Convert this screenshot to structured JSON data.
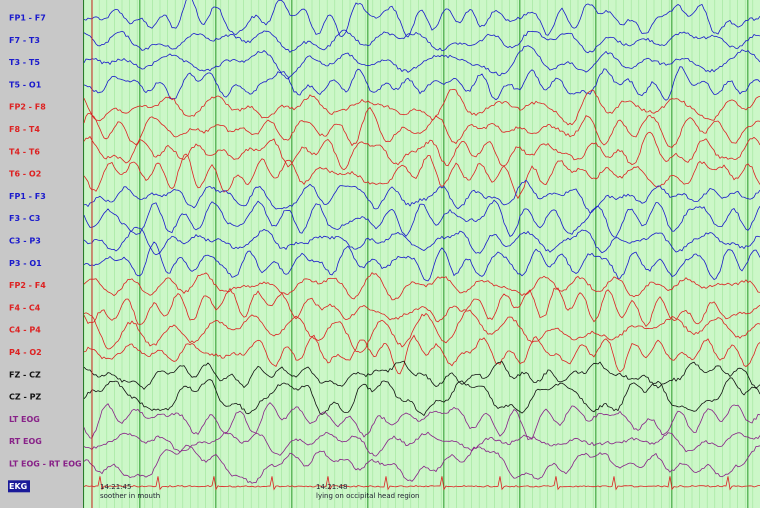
{
  "channels": [
    {
      "label": "FP1 - F7",
      "color": "#1a1acc"
    },
    {
      "label": "F7 - T3",
      "color": "#1a1acc"
    },
    {
      "label": "T3 - T5",
      "color": "#1a1acc"
    },
    {
      "label": "T5 - O1",
      "color": "#1a1acc"
    },
    {
      "label": "FP2 - F8",
      "color": "#dd2222"
    },
    {
      "label": "F8 - T4",
      "color": "#dd2222"
    },
    {
      "label": "T4 - T6",
      "color": "#dd2222"
    },
    {
      "label": "T6 - O2",
      "color": "#dd2222"
    },
    {
      "label": "FP1 - F3",
      "color": "#1a1acc"
    },
    {
      "label": "F3 - C3",
      "color": "#1a1acc"
    },
    {
      "label": "C3 - P3",
      "color": "#1a1acc"
    },
    {
      "label": "P3 - O1",
      "color": "#1a1acc"
    },
    {
      "label": "FP2 - F4",
      "color": "#dd2222"
    },
    {
      "label": "F4 - C4",
      "color": "#dd2222"
    },
    {
      "label": "C4 - P4",
      "color": "#dd2222"
    },
    {
      "label": "P4 - O2",
      "color": "#dd2222"
    },
    {
      "label": "FZ - CZ",
      "color": "#111111"
    },
    {
      "label": "CZ - PZ",
      "color": "#111111"
    },
    {
      "label": "LT EOG",
      "color": "#882288"
    },
    {
      "label": "RT EOG",
      "color": "#882288"
    },
    {
      "label": "LT EOG - RT EOG",
      "color": "#882288"
    },
    {
      "label": "EKG",
      "color": "#dd2222"
    }
  ],
  "annotations": [
    {
      "time": "14:21:45",
      "text": "soother in mouth"
    },
    {
      "time": "14:21:48",
      "text": "lying on occipital head region"
    }
  ]
}
